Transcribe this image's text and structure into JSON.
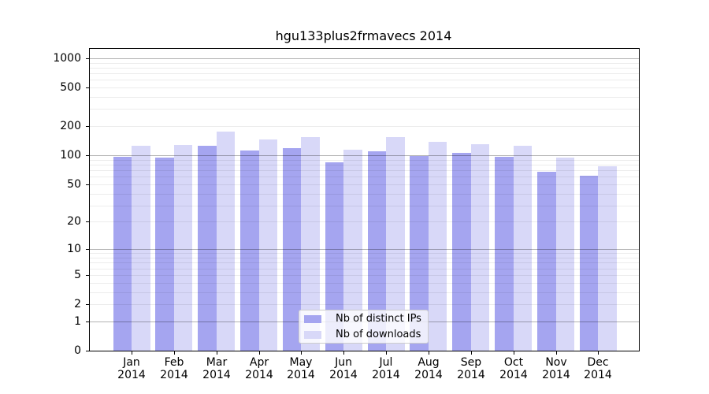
{
  "title": "hgu133plus2frmavecs 2014",
  "chart_data": {
    "type": "bar",
    "title": "hgu133plus2frmavecs 2014",
    "xlabel": "",
    "ylabel": "",
    "categories": [
      "Jan 2014",
      "Feb 2014",
      "Mar 2014",
      "Apr 2014",
      "May 2014",
      "Jun 2014",
      "Jul 2014",
      "Aug 2014",
      "Sep 2014",
      "Oct 2014",
      "Nov 2014",
      "Dec 2014"
    ],
    "series": [
      {
        "name": "Nb of distinct IPs",
        "color": "#a5a5f0",
        "values": [
          97,
          95,
          125,
          113,
          118,
          84,
          111,
          99,
          107,
          97,
          68,
          61
        ]
      },
      {
        "name": "Nb of downloads",
        "color": "#d8d8f8",
        "values": [
          126,
          127,
          175,
          147,
          155,
          115,
          153,
          137,
          130,
          125,
          94,
          77
        ]
      }
    ],
    "yscale": "log10(value+1)",
    "ylim": [
      0,
      1270
    ],
    "ytick_values": [
      0,
      1,
      2,
      5,
      10,
      20,
      50,
      100,
      200,
      500,
      1000
    ],
    "ytick_labels": [
      "0",
      "1",
      "2",
      "5",
      "10",
      "20",
      "50",
      "100",
      "200",
      "500",
      "1000"
    ],
    "grid": "horizontal; dark lines at decades (1,10,100,1000), light minor lines at 2-9 multiples",
    "legend_position": "lower center inside plot"
  },
  "colors": {
    "bar_distinct_ips": "#a5a5f0",
    "bar_downloads": "#d8d8f8",
    "grid_major": "#b3b3b3",
    "grid_minor": "#ececec",
    "axis": "#000000",
    "background": "#ffffff",
    "legend_border": "#cccccc"
  }
}
